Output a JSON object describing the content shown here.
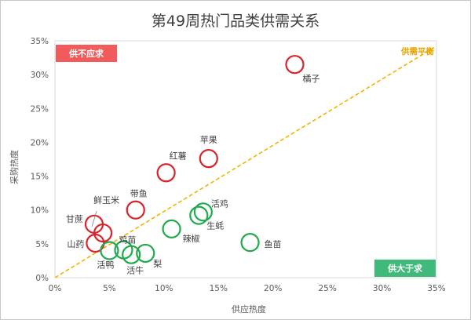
{
  "chart_data": {
    "type": "scatter",
    "title": "第49周热门品类供需关系",
    "xlabel": "供应热度",
    "ylabel": "采购热度",
    "xlim": [
      0,
      35
    ],
    "ylim": [
      0,
      35
    ],
    "x_ticks": [
      "0%",
      "5%",
      "10%",
      "15%",
      "20%",
      "25%",
      "30%",
      "35%"
    ],
    "y_ticks": [
      "0%",
      "5%",
      "10%",
      "15%",
      "20%",
      "25%",
      "30%",
      "35%"
    ],
    "grid": false,
    "balance_line": {
      "label": "供需平衡",
      "color": "#f2b400",
      "from": [
        0,
        0
      ],
      "to": [
        35,
        35
      ]
    },
    "quadrant_labels": [
      {
        "text": "供不应求",
        "color": "#f25b5b",
        "position": "top-left"
      },
      {
        "text": "供大于求",
        "color": "#3fba7a",
        "position": "bottom-right"
      }
    ],
    "series": [
      {
        "status": "supply-short",
        "color": "#d9242c",
        "points": [
          {
            "name": "橘子",
            "x": 22.0,
            "y": 31.5
          },
          {
            "name": "苹果",
            "x": 14.1,
            "y": 17.6
          },
          {
            "name": "红薯",
            "x": 10.2,
            "y": 15.5
          },
          {
            "name": "带鱼",
            "x": 7.4,
            "y": 10.0
          },
          {
            "name": "鲜玉米",
            "x": 4.4,
            "y": 6.6
          },
          {
            "name": "甘蔗",
            "x": 3.6,
            "y": 7.9
          },
          {
            "name": "山药",
            "x": 3.7,
            "y": 5.1
          }
        ]
      },
      {
        "status": "oversupply",
        "color": "#1faa4b",
        "points": [
          {
            "name": "活鸡",
            "x": 13.6,
            "y": 9.7
          },
          {
            "name": "生蚝",
            "x": 13.2,
            "y": 9.2
          },
          {
            "name": "辣椒",
            "x": 10.7,
            "y": 7.2
          },
          {
            "name": "鱼苗",
            "x": 17.9,
            "y": 5.2
          },
          {
            "name": "鸡苗",
            "x": 6.3,
            "y": 4.1
          },
          {
            "name": "梨",
            "x": 8.3,
            "y": 3.6
          },
          {
            "name": "活鸭",
            "x": 5.0,
            "y": 4.0
          },
          {
            "name": "活牛",
            "x": 7.0,
            "y": 3.4
          }
        ]
      }
    ]
  }
}
